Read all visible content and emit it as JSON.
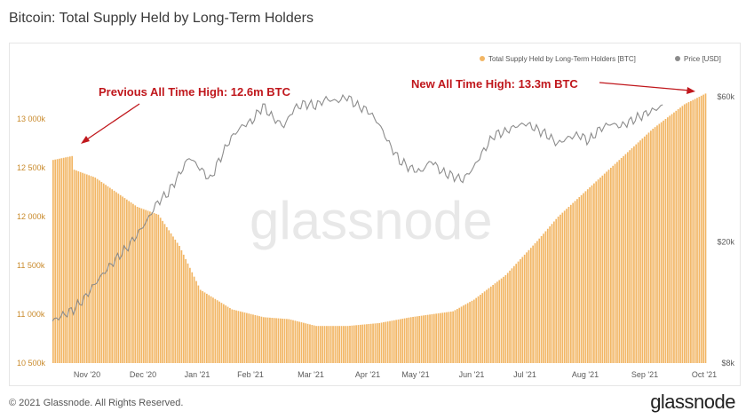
{
  "title": "Bitcoin: Total Supply Held by Long-Term Holders",
  "footer": "© 2021 Glassnode. All Rights Reserved.",
  "brand": "glassnode",
  "watermark": "glassnode",
  "colors": {
    "bars": "#f2b665",
    "bars_edge": "#e39a36",
    "price": "#8c8c8c",
    "annotation": "#c0171c"
  },
  "chart_data": {
    "type": "bar",
    "legend": [
      {
        "name": "Total Supply Held by Long-Term Holders [BTC]",
        "color": "#f2b665"
      },
      {
        "name": "Price [USD]",
        "color": "#8c8c8c"
      }
    ],
    "legend_position": "top-right",
    "x_ticks": [
      "Nov '20",
      "Dec '20",
      "Jan '21",
      "Feb '21",
      "Mar '21",
      "Apr '21",
      "May '21",
      "Jun '21",
      "Jul '21",
      "Aug '21",
      "Sep '21",
      "Oct '21"
    ],
    "y_left": {
      "ticks": [
        "10 500k",
        "11 000k",
        "11 500k",
        "12 000k",
        "12 500k",
        "13 000k"
      ],
      "range": [
        10500,
        13300
      ],
      "unit": "thousand BTC"
    },
    "y_right": {
      "ticks": [
        "$8k",
        "$20k",
        "$60k"
      ],
      "scale": "log"
    },
    "series": [
      {
        "name": "Total Supply Held by Long-Term Holders [BTC]",
        "kind": "bar",
        "points": [
          [
            0,
            12580
          ],
          [
            9,
            12620
          ],
          [
            10,
            12480
          ],
          [
            20,
            12400
          ],
          [
            30,
            12250
          ],
          [
            40,
            12100
          ],
          [
            50,
            12020
          ],
          [
            60,
            11700
          ],
          [
            70,
            11250
          ],
          [
            85,
            11050
          ],
          [
            100,
            10970
          ],
          [
            112,
            10950
          ],
          [
            125,
            10880
          ],
          [
            140,
            10880
          ],
          [
            155,
            10910
          ],
          [
            170,
            10970
          ],
          [
            180,
            11000
          ],
          [
            190,
            11030
          ],
          [
            200,
            11150
          ],
          [
            215,
            11400
          ],
          [
            230,
            11750
          ],
          [
            240,
            12000
          ],
          [
            255,
            12300
          ],
          [
            270,
            12600
          ],
          [
            285,
            12900
          ],
          [
            300,
            13150
          ],
          [
            310,
            13260
          ]
        ]
      },
      {
        "name": "Price [USD]",
        "kind": "line",
        "points": [
          [
            0,
            11000
          ],
          [
            5,
            11500
          ],
          [
            10,
            12000
          ],
          [
            15,
            13000
          ],
          [
            20,
            14500
          ],
          [
            25,
            16000
          ],
          [
            30,
            17500
          ],
          [
            35,
            19000
          ],
          [
            40,
            21000
          ],
          [
            45,
            23500
          ],
          [
            50,
            27000
          ],
          [
            55,
            29000
          ],
          [
            60,
            33000
          ],
          [
            65,
            38000
          ],
          [
            70,
            35000
          ],
          [
            75,
            32000
          ],
          [
            80,
            38000
          ],
          [
            85,
            44000
          ],
          [
            90,
            48000
          ],
          [
            95,
            50000
          ],
          [
            100,
            56000
          ],
          [
            105,
            51000
          ],
          [
            110,
            48000
          ],
          [
            115,
            55000
          ],
          [
            120,
            57000
          ],
          [
            125,
            56000
          ],
          [
            130,
            59000
          ],
          [
            135,
            58000
          ],
          [
            140,
            60000
          ],
          [
            145,
            56000
          ],
          [
            150,
            54000
          ],
          [
            155,
            49000
          ],
          [
            160,
            42000
          ],
          [
            165,
            37000
          ],
          [
            170,
            35000
          ],
          [
            175,
            34000
          ],
          [
            180,
            37000
          ],
          [
            185,
            34000
          ],
          [
            190,
            33000
          ],
          [
            195,
            32000
          ],
          [
            200,
            35000
          ],
          [
            205,
            40000
          ],
          [
            210,
            45000
          ],
          [
            215,
            46000
          ],
          [
            220,
            48000
          ],
          [
            225,
            49000
          ],
          [
            230,
            47000
          ],
          [
            235,
            45000
          ],
          [
            240,
            42000
          ],
          [
            245,
            44000
          ],
          [
            250,
            45000
          ],
          [
            255,
            43000
          ],
          [
            260,
            47000
          ],
          [
            265,
            49000
          ],
          [
            270,
            48000
          ],
          [
            280,
            52000
          ],
          [
            290,
            56000
          ]
        ]
      }
    ],
    "annotations": [
      {
        "text": "Previous All Time High: 12.6m BTC"
      },
      {
        "text": "New All Time High: 13.3m BTC"
      }
    ]
  }
}
